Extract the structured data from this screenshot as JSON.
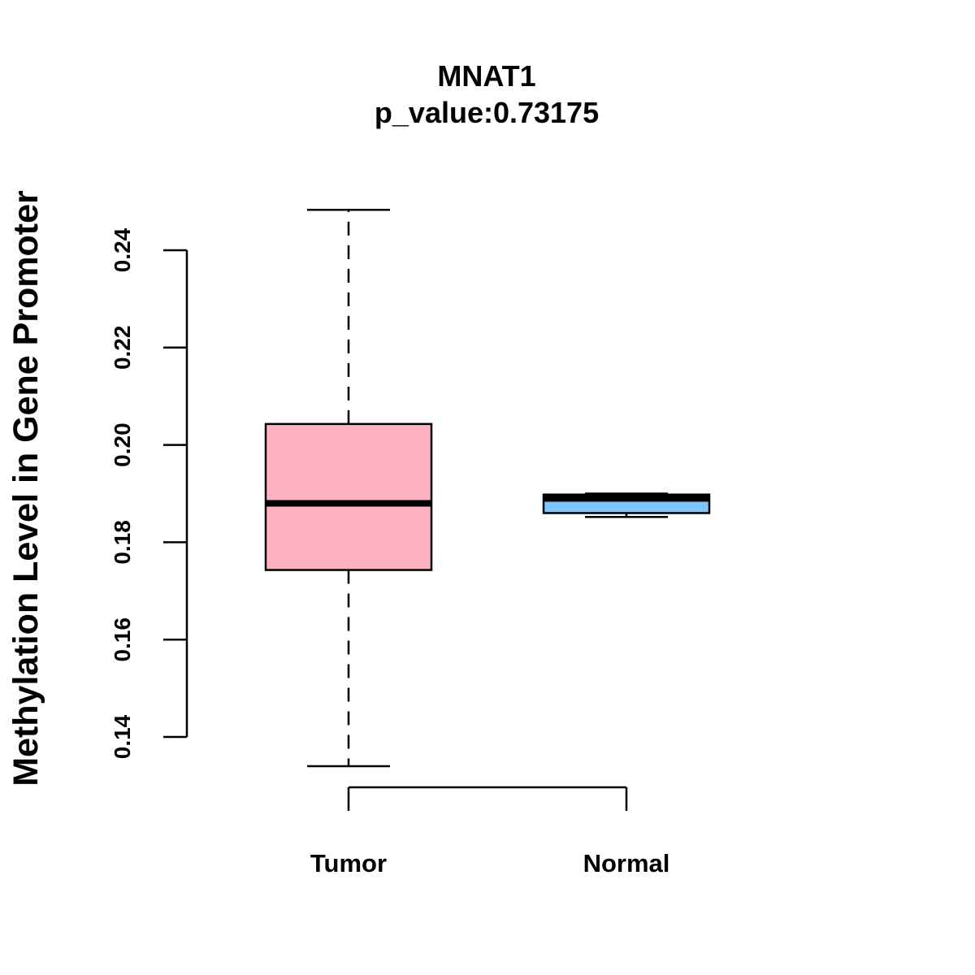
{
  "chart_data": {
    "type": "boxplot",
    "title": "MNAT1",
    "subtitle": "p_value:0.73175",
    "xlabel": "",
    "ylabel": "Methylation Level in Gene Promoter",
    "ylim": [
      0.14,
      0.24
    ],
    "yticks": [
      0.14,
      0.16,
      0.18,
      0.2,
      0.22,
      0.24
    ],
    "ytick_labels": [
      "0.14",
      "0.16",
      "0.18",
      "0.20",
      "0.22",
      "0.24"
    ],
    "categories": [
      "Tumor",
      "Normal"
    ],
    "boxes": [
      {
        "name": "Tumor",
        "whisker_low": 0.134,
        "q1": 0.1743,
        "median": 0.188,
        "q3": 0.2043,
        "whisker_high": 0.2483,
        "color": "#FFB0C1"
      },
      {
        "name": "Normal",
        "whisker_low": 0.1852,
        "q1": 0.186,
        "median": 0.189,
        "q3": 0.1898,
        "whisker_high": 0.19,
        "color": "#7FC4FA"
      }
    ],
    "grid": false,
    "legend": "none"
  }
}
